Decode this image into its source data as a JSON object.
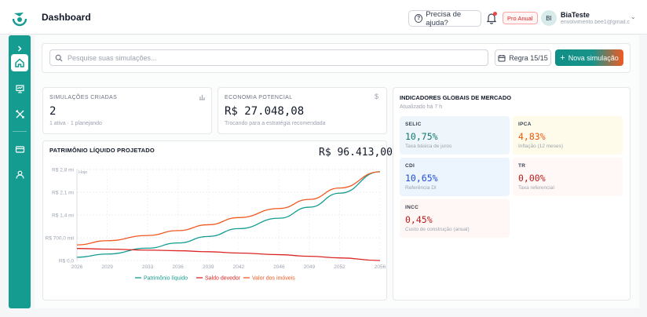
{
  "header": {
    "title": "Dashboard",
    "help_label": "Precisa de ajuda?",
    "plan_badge": "Pro Anual",
    "user": {
      "initials": "BI",
      "name": "BiaTeste",
      "email": "envolvimento.bee1@gmail.com"
    }
  },
  "sidebar": {
    "items": [
      {
        "name": "expand",
        "icon": "chevron-right-icon"
      },
      {
        "name": "home",
        "icon": "home-icon",
        "active": true
      },
      {
        "name": "presentation",
        "icon": "presentation-icon"
      },
      {
        "name": "tools",
        "icon": "tools-icon"
      },
      {
        "name": "billing",
        "icon": "credit-card-icon"
      },
      {
        "name": "profile",
        "icon": "user-icon"
      }
    ]
  },
  "toolbar": {
    "search_placeholder": "Pesquise suas simulações...",
    "rule_label": "Regra 15/15",
    "new_label": "Nova simulação"
  },
  "stats": {
    "simulations": {
      "label": "SIMULAÇÕES CRIADAS",
      "value": "2",
      "sub": "1 ativa · 1 planejando"
    },
    "savings": {
      "label": "ECONOMIA POTENCIAL",
      "value": "R$ 27.048,08",
      "sub": "Trocando para a estratégia recomendada"
    }
  },
  "chart": {
    "title": "PATRIMÔNIO LÍQUIDO PROJETADO",
    "total": "R$ 96.413,00",
    "hoje_label": "Hoje"
  },
  "chart_data": {
    "type": "line",
    "x": [
      2026,
      2029,
      2033,
      2036,
      2039,
      2042,
      2046,
      2049,
      2052,
      2056
    ],
    "x_tick_labels": [
      "2026",
      "2029",
      "2033",
      "2036",
      "2039",
      "2042",
      "2046",
      "2049",
      "2052",
      "2056"
    ],
    "y_tick_labels": [
      "R$ 0,0",
      "R$ 700,0 mil",
      "R$ 1,4 mi",
      "R$ 2,1 mi",
      "R$ 2,8 mi"
    ],
    "ylim": [
      0,
      2800000
    ],
    "grid": true,
    "legend_position": "bottom",
    "series": [
      {
        "name": "Patrimônio líquido",
        "color": "#149c90",
        "values": [
          100000,
          200000,
          380000,
          540000,
          740000,
          980000,
          1300000,
          1640000,
          2070000,
          2730000
        ]
      },
      {
        "name": "Saldo devedor",
        "color": "#dc2626",
        "values": [
          370000,
          350000,
          320000,
          300000,
          270000,
          230000,
          180000,
          130000,
          80000,
          0
        ]
      },
      {
        "name": "Valor dos imóveis",
        "color": "#f05a22",
        "values": [
          480000,
          610000,
          770000,
          920000,
          1100000,
          1320000,
          1600000,
          1880000,
          2230000,
          2730000
        ]
      }
    ]
  },
  "indicators": {
    "title": "INDICADORES GLOBAIS DE MERCADO",
    "updated": "Atualizado há 7 h",
    "items": [
      {
        "name": "SELIC",
        "value": "10,75%",
        "desc": "Taxa básica de juros",
        "bg": "#eef6fb",
        "color": "#0f766e"
      },
      {
        "name": "IPCA",
        "value": "4,83%",
        "desc": "Inflação (12 meses)",
        "bg": "#fefbea",
        "color": "#ea580c"
      },
      {
        "name": "CDI",
        "value": "10,65%",
        "desc": "Referência DI",
        "bg": "#ecf4fd",
        "color": "#1d4ed8"
      },
      {
        "name": "TR",
        "value": "0,00%",
        "desc": "Taxa referencial",
        "bg": "#fff8f6",
        "color": "#b91c1c"
      },
      {
        "name": "INCC",
        "value": "0,45%",
        "desc": "Custo de construção (anual)",
        "bg": "#fff7f5",
        "color": "#b91c1c"
      }
    ]
  }
}
